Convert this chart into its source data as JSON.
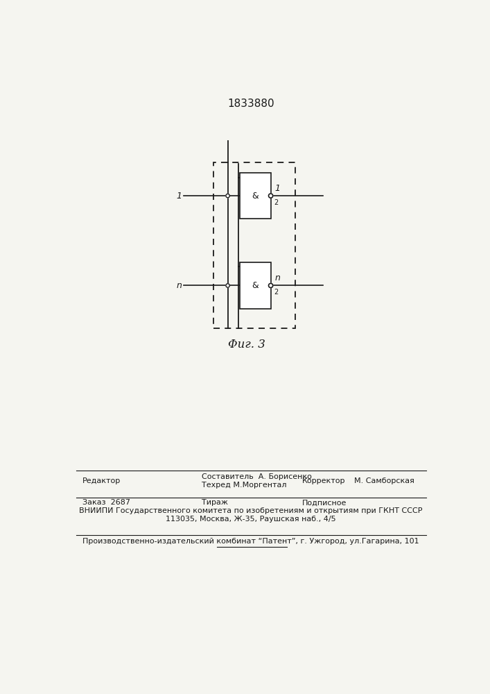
{
  "title": "1833880",
  "fig_label": "Φиг. 3",
  "bg_color": "#f5f5f0",
  "line_color": "#1a1a1a",
  "dashed_color": "#1a1a1a",
  "label_1_top": "1",
  "label_1_bottom": "n",
  "label_r_top": "1",
  "label_r_bottom": "n",
  "label_and": "&",
  "editor_line": "Редактор",
  "composer_line1": "Составитель  А. Борисенко",
  "composer_line2": "Техред М.Моргентал",
  "corrector_label": "Корректор",
  "corrector_name": "М. Самборская",
  "order_text": "Заказ  2687",
  "tirazh_text": "Тираж",
  "podpisnoe_text": "Подписное",
  "vnipi_text": "ВНИИПИ Государственного комитета по изобретениям и открытиям при ГКНТ СССР",
  "address_text": "113035, Москва, Ж-35, Раушская наб., 4/5",
  "factory_text": "Производственно-издательский комбинат “Патент”, г. Ужгород, ул.Гагарина, 101"
}
